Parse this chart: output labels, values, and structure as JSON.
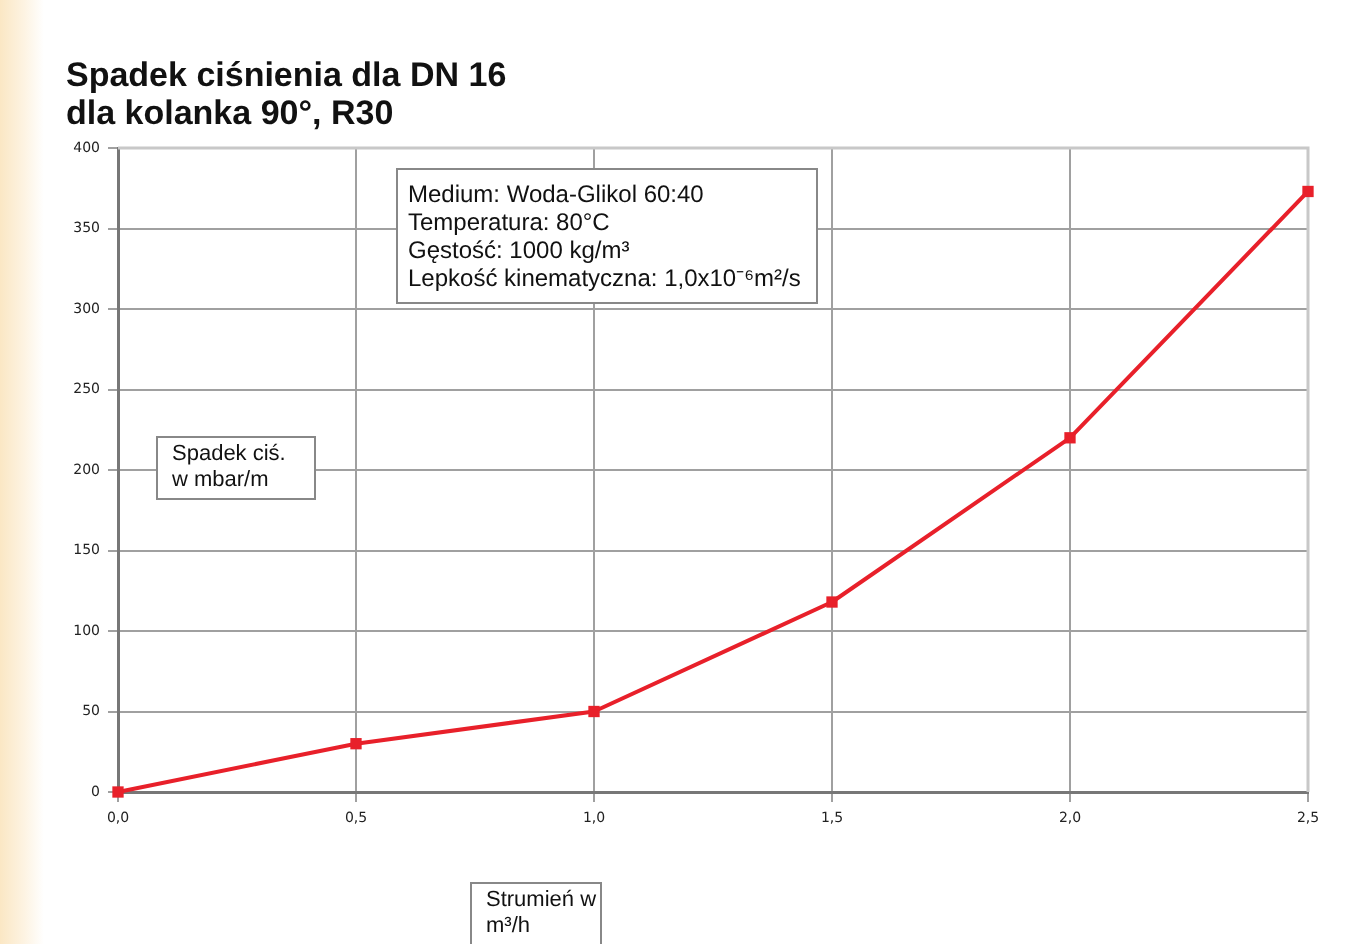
{
  "chart_data": {
    "type": "line",
    "title": "Spadek ciśnienia dla DN 16\ndla kolanka 90°, R30",
    "xlabel": "Strumień w\nm³/h",
    "ylabel": "Spadek ciś.\nw mbar/m",
    "annotations": [
      "Medium: Woda-Glikol 60:40",
      "Temperatura: 80°C",
      "Gęstość: 1000 kg/m³",
      "Lepkość kinematyczna: 1,0x10⁻⁶m²/s"
    ],
    "x": [
      0,
      0.5,
      1.0,
      1.5,
      2.0,
      2.5
    ],
    "values": [
      0,
      30,
      50,
      118,
      220,
      373
    ],
    "color": "#e8202a",
    "xlim": [
      0,
      2.5
    ],
    "xticks": [
      {
        "value": 0,
        "label": "0,0"
      },
      {
        "value": 0.5,
        "label": "0,5"
      },
      {
        "value": 1.0,
        "label": "1,0"
      },
      {
        "value": 1.5,
        "label": "1,5"
      },
      {
        "value": 2.0,
        "label": "2,0"
      },
      {
        "value": 2.5,
        "label": "2,5"
      }
    ],
    "ylim": [
      0,
      400
    ],
    "yticks": [
      0,
      50,
      100,
      150,
      200,
      250,
      300,
      350,
      400
    ],
    "grid": true,
    "marker": "square",
    "line_style": "solid"
  }
}
